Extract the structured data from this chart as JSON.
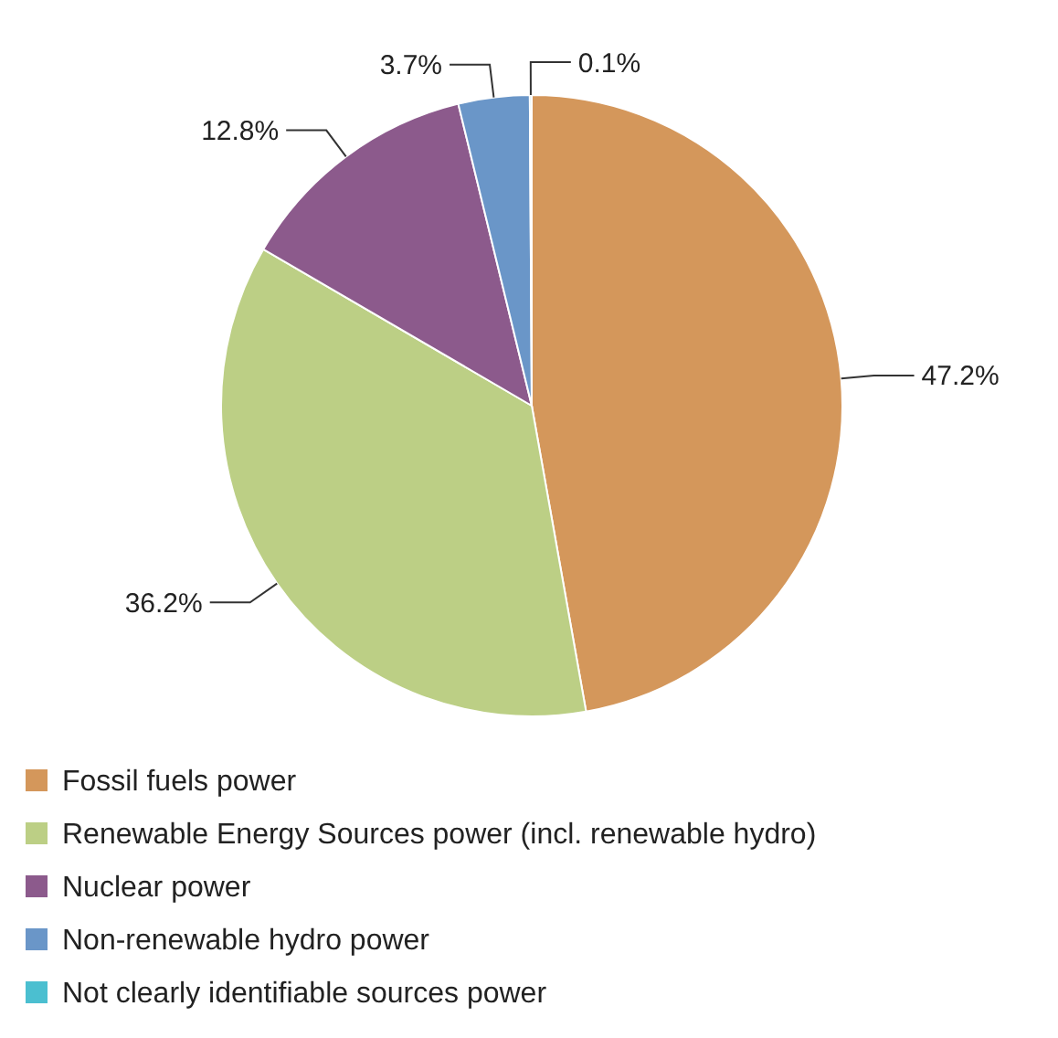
{
  "chart_data": {
    "type": "pie",
    "categories": [
      "Fossil fuels power",
      "Renewable Energy Sources power (incl. renewable hydro)",
      "Nuclear power",
      "Non-renewable hydro power",
      "Not clearly identifiable sources power"
    ],
    "values": [
      47.2,
      36.2,
      12.8,
      3.7,
      0.1
    ],
    "value_labels": [
      "47.2%",
      "36.2%",
      "12.8%",
      "3.7%",
      "0.1%"
    ],
    "colors": [
      "#d4975b",
      "#bccf85",
      "#8c5a8c",
      "#6a96c8",
      "#4bbfd0"
    ],
    "legend": "bottom"
  }
}
